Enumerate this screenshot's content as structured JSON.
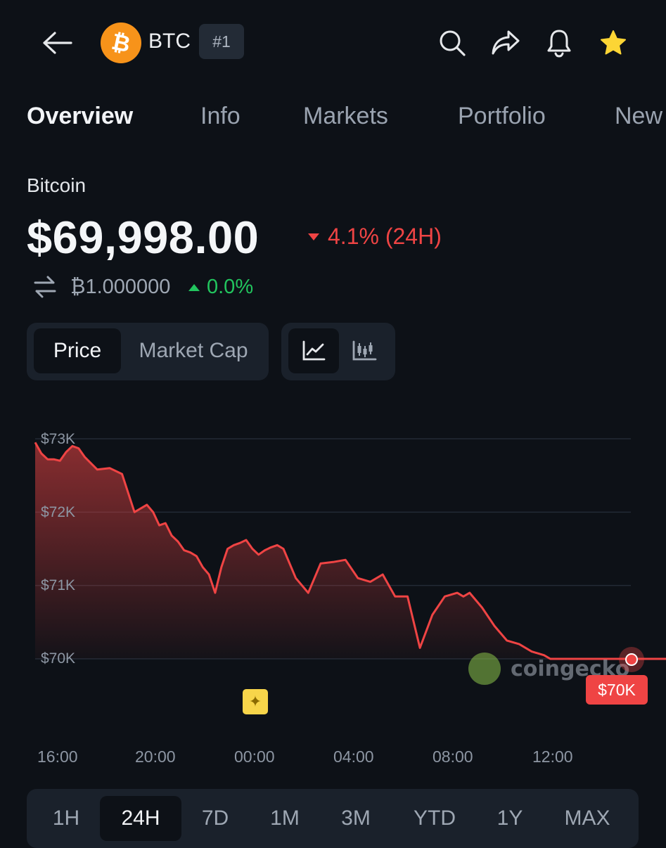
{
  "header": {
    "coin_symbol": "BTC",
    "rank": "#1",
    "icons": [
      "back-arrow-icon",
      "search-icon",
      "share-icon",
      "bell-icon",
      "star-icon"
    ]
  },
  "tabs": [
    "Overview",
    "Info",
    "Markets",
    "Portfolio",
    "New"
  ],
  "coin": {
    "name": "Bitcoin",
    "price": "$69,998.00",
    "change_24h": "4.1% (24H)",
    "btc_value": "₿1.000000",
    "btc_change": "0.0%"
  },
  "controls": {
    "metric_options": [
      "Price",
      "Market Cap"
    ],
    "selected_metric": "Price",
    "chart_types": [
      "line-chart-icon",
      "candlestick-icon"
    ]
  },
  "range": {
    "options": [
      "1H",
      "24H",
      "7D",
      "1M",
      "3M",
      "YTD",
      "1Y",
      "MAX"
    ],
    "selected": "24H"
  },
  "watermark": "coingecko",
  "colors": {
    "background": "#0d1117",
    "negative": "#ef4444",
    "positive": "#22c55e",
    "btc_orange": "#f7931a"
  },
  "chart_data": {
    "type": "area",
    "y_ticks": [
      "$73K",
      "$72K",
      "$71K",
      "$70K"
    ],
    "x_ticks": [
      "16:00",
      "20:00",
      "00:00",
      "04:00",
      "08:00",
      "12:00"
    ],
    "ylim": [
      70000,
      73000
    ],
    "last_price_label": "$70K",
    "series": [
      {
        "x": [
          15.0,
          15.25,
          15.5,
          15.75,
          16.0,
          16.25,
          16.5,
          16.75,
          17.0,
          17.5,
          18.0,
          18.5,
          19.0,
          19.5,
          19.75,
          20.0,
          20.25,
          20.5,
          20.75,
          21.0,
          21.25,
          21.5,
          21.75,
          22.0,
          22.25,
          22.5,
          22.75,
          23.0,
          23.25,
          23.5,
          23.75,
          24.0,
          24.25,
          24.5,
          24.75,
          25.0,
          25.5,
          26.0,
          26.5,
          27.0,
          27.5,
          28.0,
          28.5,
          29.0,
          29.5,
          30.0,
          30.5,
          31.0,
          31.5,
          32.0,
          32.25,
          32.5,
          33.0,
          33.5,
          34.0,
          34.5,
          35.0,
          35.5,
          35.75,
          36.0,
          36.5,
          37.0,
          37.5,
          38.0,
          38.5,
          39.0,
          39.5,
          40.0,
          40.25,
          40.5,
          41.0
        ],
        "y": [
          72950,
          72800,
          72720,
          72720,
          72700,
          72820,
          72900,
          72870,
          72750,
          72580,
          72600,
          72520,
          72000,
          72100,
          72000,
          71820,
          71850,
          71680,
          71600,
          71480,
          71450,
          71400,
          71250,
          71150,
          70900,
          71250,
          71500,
          71550,
          71580,
          71620,
          71500,
          71420,
          71480,
          71520,
          71550,
          71500,
          71100,
          70900,
          71300,
          71320,
          71350,
          71100,
          71050,
          71150,
          70850,
          70850,
          70150,
          70600,
          70850,
          70900,
          70850,
          70900,
          70700,
          70450,
          70250,
          70200,
          70100,
          70050,
          70000,
          70000,
          70000,
          70000,
          70000,
          70000,
          70000,
          70000,
          70000,
          70000,
          70000,
          70000,
          69998
        ]
      }
    ]
  }
}
